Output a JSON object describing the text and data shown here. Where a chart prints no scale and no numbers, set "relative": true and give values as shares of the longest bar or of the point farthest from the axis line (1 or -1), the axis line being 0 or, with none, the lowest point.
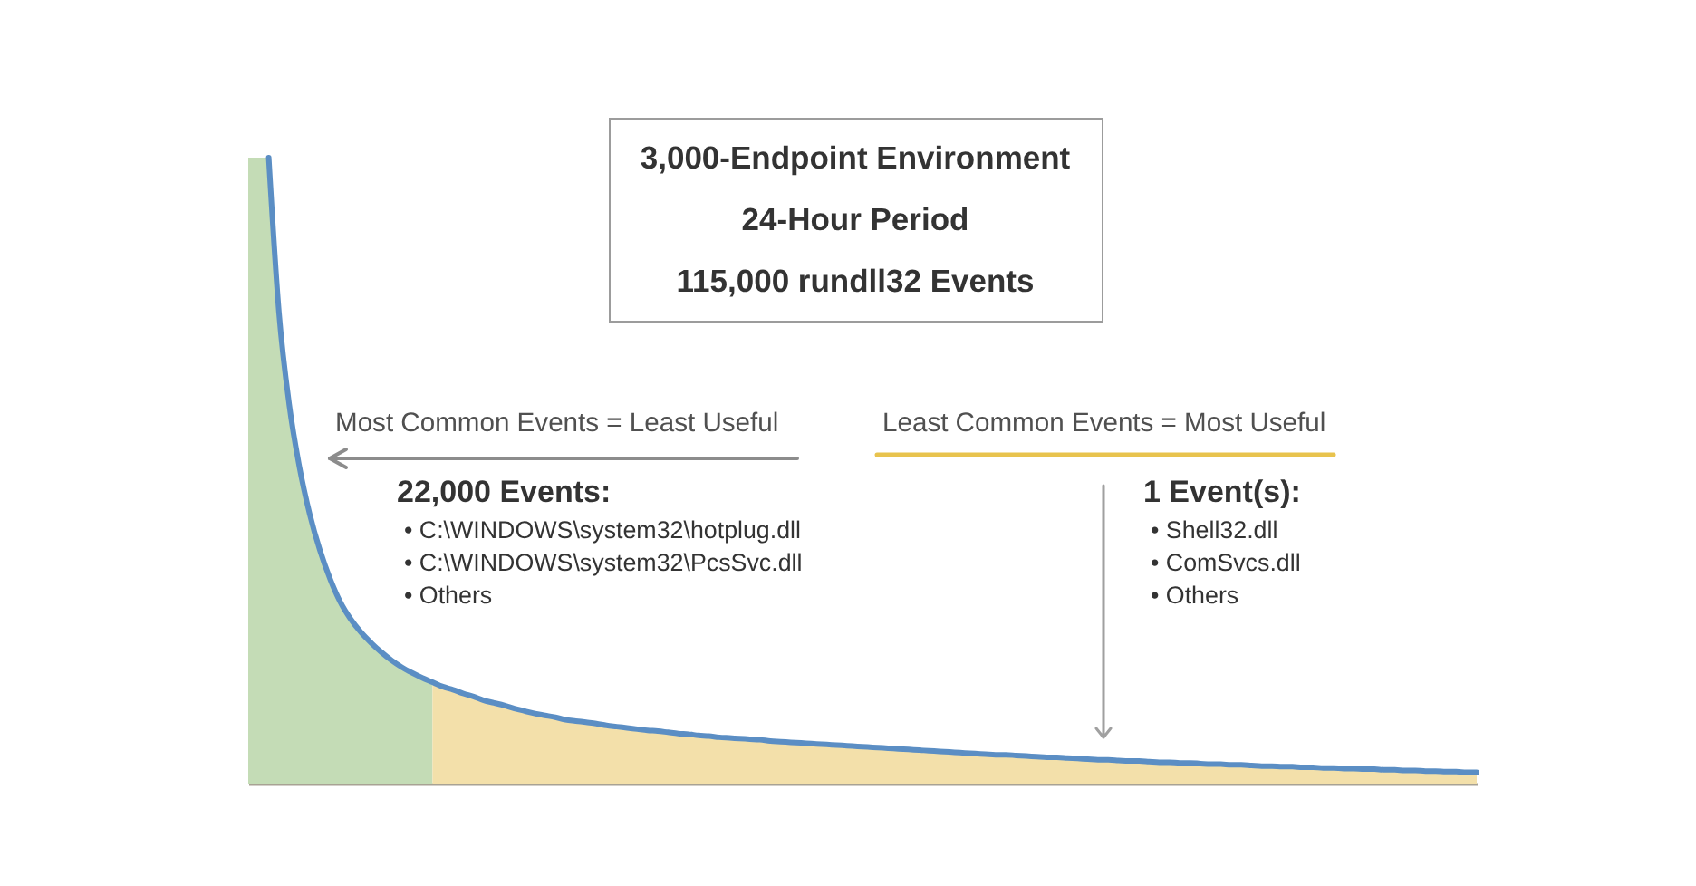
{
  "chart_data": {
    "type": "area",
    "relative": true,
    "categories": [
      null,
      null,
      null,
      null,
      null,
      null,
      null,
      null,
      null,
      null,
      null,
      null,
      null,
      null,
      null,
      null,
      null,
      null,
      null,
      null,
      null,
      null,
      null,
      null,
      null,
      null,
      null,
      null,
      null,
      null,
      null,
      null,
      null,
      null,
      null,
      null,
      null,
      null,
      null,
      null,
      null,
      null,
      null,
      null,
      null,
      null,
      null,
      null,
      null,
      null,
      null,
      null,
      null,
      null,
      null,
      null,
      null,
      null,
      null,
      null,
      null,
      null,
      null,
      null,
      null,
      null,
      null,
      null,
      null,
      null,
      null,
      null,
      null,
      null,
      null,
      null,
      null,
      null,
      null,
      null,
      null,
      null,
      null,
      null,
      null,
      null,
      null,
      null,
      null,
      null,
      null,
      null,
      null,
      null,
      null,
      null,
      null,
      null,
      null,
      null,
      null,
      null,
      null,
      null,
      null,
      null,
      null,
      null,
      null,
      null,
      null,
      null,
      null,
      null,
      null,
      null,
      null,
      null,
      null,
      null,
      null
    ],
    "series": [
      {
        "color": "#c4dcb6",
        "values": [
          1,
          1,
          1,
          0.753,
          0.606,
          0.506,
          0.431,
          0.373,
          0.327,
          0.29,
          0.263,
          0.242,
          0.225,
          0.21,
          0.197,
          0.186,
          0.177,
          0.169,
          0.162,
          null,
          null,
          null,
          null,
          null,
          null,
          null,
          null,
          null,
          null,
          null,
          null,
          null,
          null,
          null,
          null,
          null,
          null,
          null,
          null,
          null,
          null,
          null,
          null,
          null,
          null,
          null,
          null,
          null,
          null,
          null,
          null,
          null,
          null,
          null,
          null,
          null,
          null,
          null,
          null,
          null,
          null,
          null,
          null,
          null,
          null,
          null,
          null,
          null,
          null,
          null,
          null,
          null,
          null,
          null,
          null,
          null,
          null,
          null,
          null,
          null,
          null,
          null,
          null,
          null,
          null,
          null,
          null,
          null,
          null,
          null,
          null,
          null,
          null,
          null,
          null,
          null,
          null,
          null,
          null,
          null,
          null,
          null,
          null,
          null,
          null,
          null,
          null,
          null,
          null,
          null,
          null,
          null,
          null,
          null,
          null,
          null,
          null,
          null,
          null,
          null,
          null
        ]
      },
      {
        "color": "#f3e0aa",
        "values": [
          null,
          null,
          null,
          null,
          null,
          null,
          null,
          null,
          null,
          null,
          null,
          null,
          null,
          null,
          null,
          null,
          null,
          null,
          0.162,
          0.155,
          0.15,
          0.144,
          0.139,
          0.133,
          0.129,
          0.125,
          0.12,
          0.116,
          0.112,
          0.109,
          0.106,
          0.102,
          0.1,
          0.098,
          0.096,
          0.093,
          0.091,
          0.089,
          0.087,
          0.085,
          0.084,
          0.082,
          0.08,
          0.079,
          0.077,
          0.076,
          0.074,
          0.073,
          0.072,
          0.071,
          0.07,
          0.068,
          0.067,
          0.066,
          0.065,
          0.064,
          0.063,
          0.062,
          0.061,
          0.06,
          0.059,
          0.058,
          0.057,
          0.056,
          0.055,
          0.054,
          0.053,
          0.052,
          0.051,
          0.05,
          0.049,
          0.048,
          0.047,
          0.046,
          0.046,
          0.045,
          0.044,
          0.043,
          0.042,
          0.042,
          0.041,
          0.04,
          0.039,
          0.038,
          0.038,
          0.037,
          0.036,
          0.036,
          0.035,
          0.034,
          0.034,
          0.033,
          0.033,
          0.032,
          0.031,
          0.031,
          0.03,
          0.03,
          0.029,
          0.028,
          0.028,
          0.027,
          0.027,
          0.026,
          0.026,
          0.025,
          0.025,
          0.024,
          0.024,
          0.023,
          0.023,
          0.022,
          0.022,
          0.021,
          0.021,
          0.02,
          0.02,
          0.019,
          0.019,
          0.018,
          0.018
        ]
      },
      {
        "type": "line",
        "color": "#5b8ec4",
        "values": [
          null,
          null,
          1,
          0.753,
          0.606,
          0.506,
          0.431,
          0.373,
          0.327,
          0.29,
          0.263,
          0.242,
          0.225,
          0.21,
          0.197,
          0.186,
          0.177,
          0.169,
          0.162,
          0.155,
          0.15,
          0.144,
          0.139,
          0.133,
          0.129,
          0.125,
          0.12,
          0.116,
          0.112,
          0.109,
          0.106,
          0.102,
          0.1,
          0.098,
          0.096,
          0.093,
          0.091,
          0.089,
          0.087,
          0.085,
          0.084,
          0.082,
          0.08,
          0.079,
          0.077,
          0.076,
          0.074,
          0.073,
          0.072,
          0.071,
          0.07,
          0.068,
          0.067,
          0.066,
          0.065,
          0.064,
          0.063,
          0.062,
          0.061,
          0.06,
          0.059,
          0.058,
          0.057,
          0.056,
          0.055,
          0.054,
          0.053,
          0.052,
          0.051,
          0.05,
          0.049,
          0.048,
          0.047,
          0.046,
          0.046,
          0.045,
          0.044,
          0.043,
          0.042,
          0.042,
          0.041,
          0.04,
          0.039,
          0.038,
          0.038,
          0.037,
          0.036,
          0.036,
          0.035,
          0.034,
          0.034,
          0.033,
          0.033,
          0.032,
          0.031,
          0.031,
          0.03,
          0.03,
          0.029,
          0.028,
          0.028,
          0.027,
          0.027,
          0.026,
          0.026,
          0.025,
          0.025,
          0.024,
          0.024,
          0.023,
          0.023,
          0.022,
          0.022,
          0.021,
          0.021,
          0.02,
          0.02,
          0.019,
          0.019,
          0.018,
          0.018
        ]
      }
    ],
    "annotations": [
      "3,000-Endpoint Environment",
      "24-Hour Period",
      "115,000 rundll32 Events",
      "Most Common Events = Least Useful",
      "Least Common Events = Most Useful",
      "22,000 Events:",
      "• C:\\WINDOWS\\system32\\hotplug.dll",
      "• C:\\WINDOWS\\system32\\PcsSvc.dll",
      "• Others",
      "1 Event(s):",
      "• Shell32.dll",
      "• ComSvcs.dll",
      "• Others"
    ]
  }
}
